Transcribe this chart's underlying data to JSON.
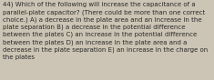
{
  "text": "44) Which of the following will increase the capacitance of a\nparallel-plate capacitor? (There could be more than one correct\nchoice.) A) a decrease in the plate area and an increase in the\nplate separation B) a decrease in the potential difference\nbetween the plates C) an increase in the potential difference\nbetween the plates D) an increase in the plate area and a\ndecrease in the plate separation E) an increase in the charge on\nthe plates",
  "background_color": "#ccc4b4",
  "text_color": "#2a2a2a",
  "font_size": 5.05,
  "fig_width": 2.35,
  "fig_height": 0.88,
  "dpi": 100
}
